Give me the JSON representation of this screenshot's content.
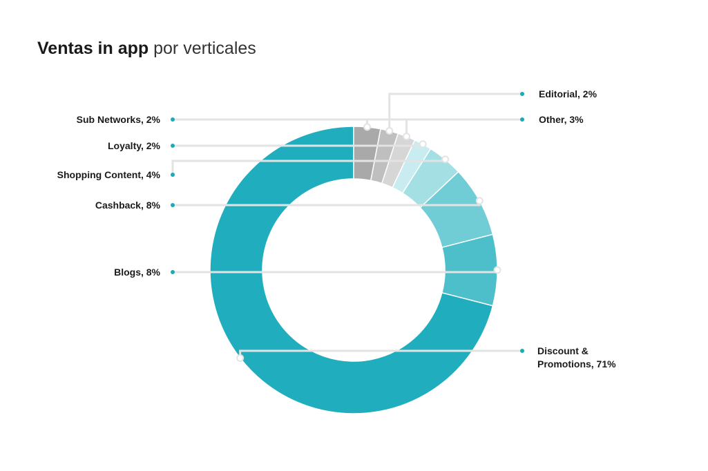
{
  "title": {
    "bold": "Ventas in app",
    "light": "por verticales"
  },
  "colors": {
    "leader": "#e3e3e3",
    "dot": "#1aaab9",
    "background": "#ffffff"
  },
  "chart_data": {
    "type": "pie",
    "style": "donut",
    "start": "top, clockwise",
    "slices": [
      {
        "name": "Discount & Promotions",
        "value": 71,
        "label": [
          "Discount &",
          "Promotions, 71%"
        ],
        "color": "#20aebe"
      },
      {
        "name": "Blogs",
        "value": 8,
        "label": [
          "Blogs, 8%"
        ],
        "color": "#4dbfca"
      },
      {
        "name": "Cashback",
        "value": 8,
        "label": [
          "Cashback, 8%"
        ],
        "color": "#70cdd5"
      },
      {
        "name": "Shopping Content",
        "value": 4,
        "label": [
          "Shopping Content, 4%"
        ],
        "color": "#a4dfe4"
      },
      {
        "name": "Loyalty",
        "value": 2,
        "label": [
          "Loyalty, 2%"
        ],
        "color": "#c8ecef"
      },
      {
        "name": "Sub Networks",
        "value": 2,
        "label": [
          "Sub Networks, 2%"
        ],
        "color": "#d6d6d6"
      },
      {
        "name": "Editorial",
        "value": 2,
        "label": [
          "Editorial, 2%"
        ],
        "color": "#bfbfbf"
      },
      {
        "name": "Other",
        "value": 3,
        "label": [
          "Other, 3%"
        ],
        "color": "#a9a9a9"
      }
    ]
  }
}
